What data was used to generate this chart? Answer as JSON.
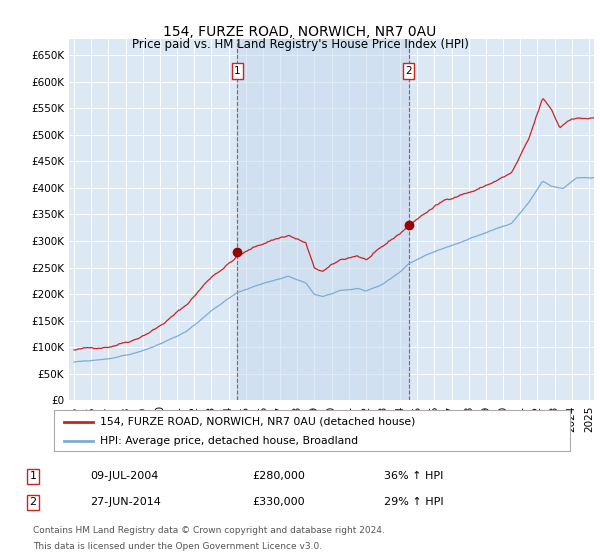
{
  "title": "154, FURZE ROAD, NORWICH, NR7 0AU",
  "subtitle": "Price paid vs. HM Land Registry's House Price Index (HPI)",
  "ylabel_ticks": [
    "£0",
    "£50K",
    "£100K",
    "£150K",
    "£200K",
    "£250K",
    "£300K",
    "£350K",
    "£400K",
    "£450K",
    "£500K",
    "£550K",
    "£600K",
    "£650K"
  ],
  "ytick_values": [
    0,
    50000,
    100000,
    150000,
    200000,
    250000,
    300000,
    350000,
    400000,
    450000,
    500000,
    550000,
    600000,
    650000
  ],
  "ylim": [
    0,
    680000
  ],
  "xlim_start": 1994.7,
  "xlim_end": 2025.3,
  "bg_color": "#dce9f5",
  "grid_color": "#ffffff",
  "sale1_x": 2004.52,
  "sale1_y": 280000,
  "sale2_x": 2014.49,
  "sale2_y": 330000,
  "legend_line1": "154, FURZE ROAD, NORWICH, NR7 0AU (detached house)",
  "legend_line2": "HPI: Average price, detached house, Broadland",
  "annotation1_date": "09-JUL-2004",
  "annotation1_price": "£280,000",
  "annotation1_hpi": "36% ↑ HPI",
  "annotation2_date": "27-JUN-2014",
  "annotation2_price": "£330,000",
  "annotation2_hpi": "29% ↑ HPI",
  "footnote1": "Contains HM Land Registry data © Crown copyright and database right 2024.",
  "footnote2": "This data is licensed under the Open Government Licence v3.0."
}
